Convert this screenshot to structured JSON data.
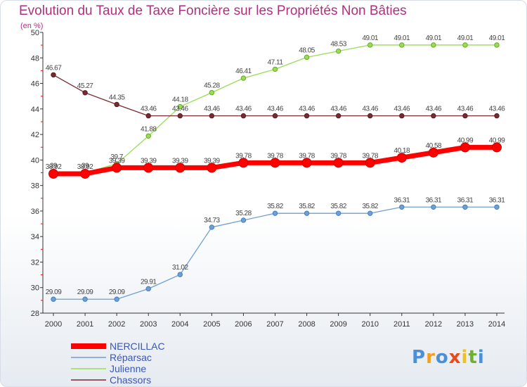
{
  "chart_data": {
    "type": "line",
    "title": "Evolution du Taux de Taxe Foncière sur les Propriétés Non Bâties",
    "ylabel": "(en %)",
    "xlabel": "",
    "ylim": [
      28,
      50
    ],
    "yticks": [
      28,
      30,
      32,
      34,
      36,
      38,
      40,
      42,
      44,
      46,
      48,
      50
    ],
    "categories": [
      "2000",
      "2001",
      "2002",
      "2003",
      "2004",
      "2005",
      "2006",
      "2007",
      "2008",
      "2009",
      "2010",
      "2011",
      "2012",
      "2013",
      "2014"
    ],
    "series": [
      {
        "name": "NERCILLAC",
        "color": "#ff0000",
        "width": "thick",
        "values": [
          38.92,
          38.92,
          39.39,
          39.39,
          39.39,
          39.39,
          39.78,
          39.78,
          39.78,
          39.78,
          39.78,
          40.18,
          40.58,
          40.99,
          40.99
        ],
        "labels": [
          "38.92",
          "38.92",
          "39.39",
          "39.39",
          "39.39",
          "39.39",
          "39.78",
          "39.78",
          "39.78",
          "39.78",
          "39.78",
          "40.18",
          "40.58",
          "40.99",
          "40.99"
        ]
      },
      {
        "name": "Réparsac",
        "color": "#6f9fd3",
        "width": "thin",
        "values": [
          29.09,
          29.09,
          29.09,
          29.91,
          31.02,
          34.73,
          35.28,
          35.82,
          35.82,
          35.82,
          35.82,
          36.31,
          36.31,
          36.31,
          36.31
        ],
        "labels": [
          "29.09",
          "29.09",
          "29.09",
          "29.91",
          "31.02",
          "34.73",
          "35.28",
          "35.82",
          "35.82",
          "35.82",
          "35.82",
          "36.31",
          "36.31",
          "36.31",
          "36.31"
        ]
      },
      {
        "name": "Julienne",
        "color": "#99dd55",
        "width": "thin",
        "values": [
          39,
          39,
          39.7,
          41.88,
          44.18,
          45.28,
          46.41,
          47.11,
          48.05,
          48.53,
          49.01,
          49.01,
          49.01,
          49.01,
          49.01
        ],
        "labels": [
          "39",
          "39",
          "39.7",
          "41.88",
          "44.18",
          "45.28",
          "46.41",
          "47.11",
          "48.05",
          "48.53",
          "49.01",
          "49.01",
          "49.01",
          "49.01",
          "49.01"
        ]
      },
      {
        "name": "Chassors",
        "color": "#7a2a30",
        "width": "thin",
        "values": [
          46.67,
          45.27,
          44.35,
          43.46,
          43.46,
          43.46,
          43.46,
          43.46,
          43.46,
          43.46,
          43.46,
          43.46,
          43.46,
          43.46,
          43.46
        ],
        "labels": [
          "46.67",
          "45.27",
          "44.35",
          "43.46",
          "43.46",
          "43.46",
          "43.46",
          "43.46",
          "43.46",
          "43.46",
          "43.46",
          "43.46",
          "43.46",
          "43.46",
          "43.46"
        ]
      }
    ],
    "legend": [
      "NERCILLAC",
      "Réparsac",
      "Julienne",
      "Chassors"
    ],
    "legend_position": "bottom-left",
    "grid": false
  },
  "logo": {
    "letters": [
      "P",
      "r",
      "o",
      "x",
      "i",
      "t",
      "i"
    ],
    "colors": [
      "#4a90d9",
      "#f0a020",
      "#4a90d9",
      "#e84a1a",
      "#f0c020",
      "#70b030",
      "#4a90d9"
    ]
  }
}
